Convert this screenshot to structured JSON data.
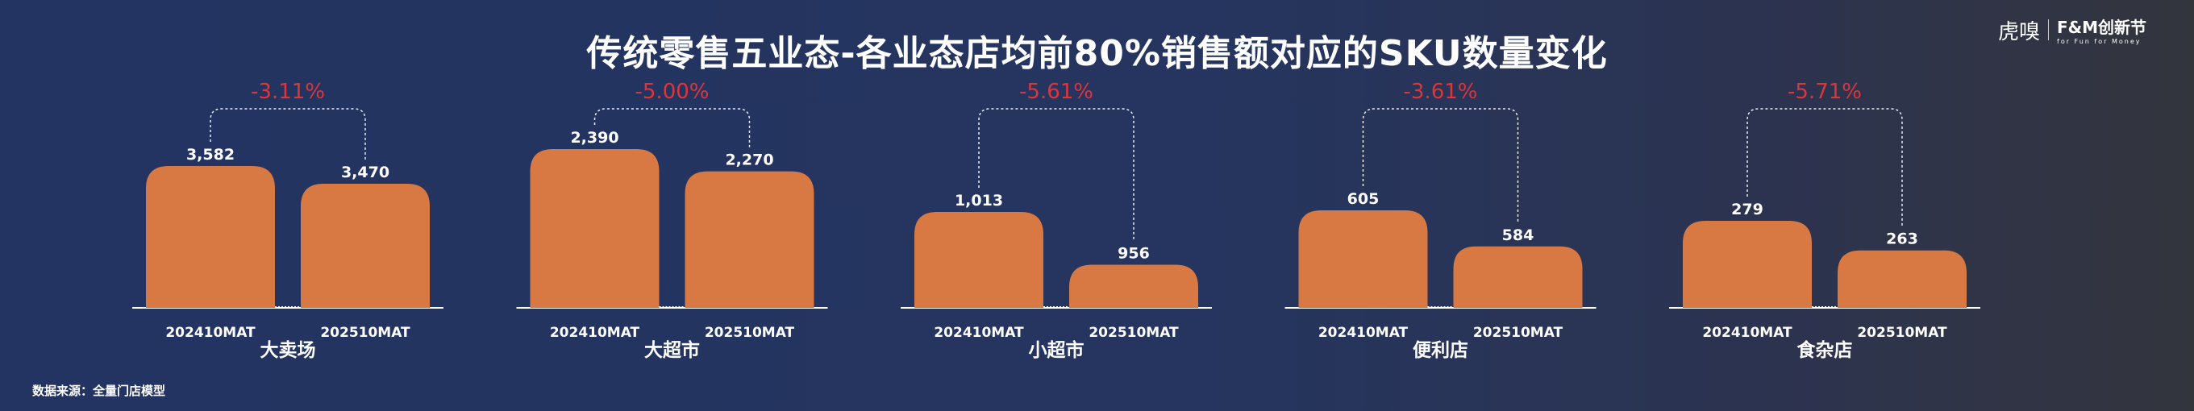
{
  "title": "传统零售五业态-各业态店均前80%销售额对应的SKU数量变化",
  "logo": {
    "brand1": "虎嗅",
    "brand2": "F&M创新节",
    "tagline": "for Fun for Money"
  },
  "source": "数据来源：全量门店模型",
  "chart_data": {
    "type": "bar",
    "title": "传统零售五业态-各业态店均前80%销售额对应的SKU数量变化",
    "bar_color": "#D87842",
    "change_color": "#D9363E",
    "groups": [
      {
        "name": "大卖场",
        "categories": [
          "202410MAT",
          "202510MAT"
        ],
        "values": [
          3582,
          3470
        ],
        "labels": [
          "3,582",
          "3,470"
        ],
        "change": "-3.11%"
      },
      {
        "name": "大超市",
        "categories": [
          "202410MAT",
          "202510MAT"
        ],
        "values": [
          2390,
          2270
        ],
        "labels": [
          "2,390",
          "2,270"
        ],
        "change": "-5.00%"
      },
      {
        "name": "小超市",
        "categories": [
          "202410MAT",
          "202510MAT"
        ],
        "values": [
          1013,
          956
        ],
        "labels": [
          "1,013",
          "956"
        ],
        "change": "-5.61%"
      },
      {
        "name": "便利店",
        "categories": [
          "202410MAT",
          "202510MAT"
        ],
        "values": [
          605,
          584
        ],
        "labels": [
          "605",
          "584"
        ],
        "change": "-3.61%"
      },
      {
        "name": "食杂店",
        "categories": [
          "202410MAT",
          "202510MAT"
        ],
        "values": [
          279,
          263
        ],
        "labels": [
          "279",
          "263"
        ],
        "change": "-5.71%"
      }
    ]
  }
}
